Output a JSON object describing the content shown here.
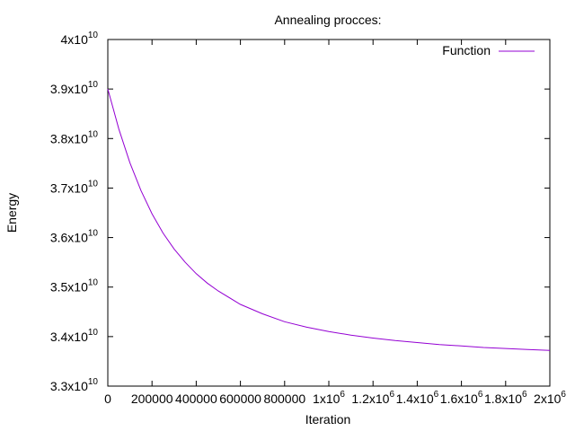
{
  "chart_data": {
    "type": "line",
    "title": "Annealing procces:",
    "xlabel": "Iteration",
    "ylabel": "Energy",
    "xlim": [
      0,
      2000000
    ],
    "ylim": [
      33000000000,
      40000000000
    ],
    "grid": false,
    "legend_placement": "top-right",
    "x_ticks": [
      {
        "value": 0,
        "mant": "0",
        "exp": ""
      },
      {
        "value": 200000,
        "mant": "200000",
        "exp": ""
      },
      {
        "value": 400000,
        "mant": "400000",
        "exp": ""
      },
      {
        "value": 600000,
        "mant": "600000",
        "exp": ""
      },
      {
        "value": 800000,
        "mant": "800000",
        "exp": ""
      },
      {
        "value": 1000000,
        "mant": "1x10",
        "exp": "6"
      },
      {
        "value": 1200000,
        "mant": "1.2x10",
        "exp": "6"
      },
      {
        "value": 1400000,
        "mant": "1.4x10",
        "exp": "6"
      },
      {
        "value": 1600000,
        "mant": "1.6x10",
        "exp": "6"
      },
      {
        "value": 1800000,
        "mant": "1.8x10",
        "exp": "6"
      },
      {
        "value": 2000000,
        "mant": "2x10",
        "exp": "6"
      }
    ],
    "y_ticks": [
      {
        "value": 33000000000,
        "mant": "3.3x10",
        "exp": "10"
      },
      {
        "value": 34000000000,
        "mant": "3.4x10",
        "exp": "10"
      },
      {
        "value": 35000000000,
        "mant": "3.5x10",
        "exp": "10"
      },
      {
        "value": 36000000000,
        "mant": "3.6x10",
        "exp": "10"
      },
      {
        "value": 37000000000,
        "mant": "3.7x10",
        "exp": "10"
      },
      {
        "value": 38000000000,
        "mant": "3.8x10",
        "exp": "10"
      },
      {
        "value": 39000000000,
        "mant": "3.9x10",
        "exp": "10"
      },
      {
        "value": 40000000000,
        "mant": "4x10",
        "exp": "10"
      }
    ],
    "series": [
      {
        "name": "Function",
        "color": "#9400d3",
        "x": [
          0,
          50000,
          100000,
          150000,
          200000,
          250000,
          300000,
          350000,
          400000,
          450000,
          500000,
          600000,
          700000,
          800000,
          900000,
          1000000,
          1100000,
          1200000,
          1300000,
          1400000,
          1500000,
          1600000,
          1700000,
          1800000,
          1900000,
          2000000
        ],
        "y": [
          39000000000,
          38190000000,
          37510000000,
          36950000000,
          36480000000,
          36090000000,
          35770000000,
          35500000000,
          35270000000,
          35080000000,
          34920000000,
          34650000000,
          34460000000,
          34300000000,
          34190000000,
          34100000000,
          34030000000,
          33970000000,
          33920000000,
          33880000000,
          33840000000,
          33810000000,
          33780000000,
          33760000000,
          33740000000,
          33720000000
        ]
      }
    ]
  }
}
